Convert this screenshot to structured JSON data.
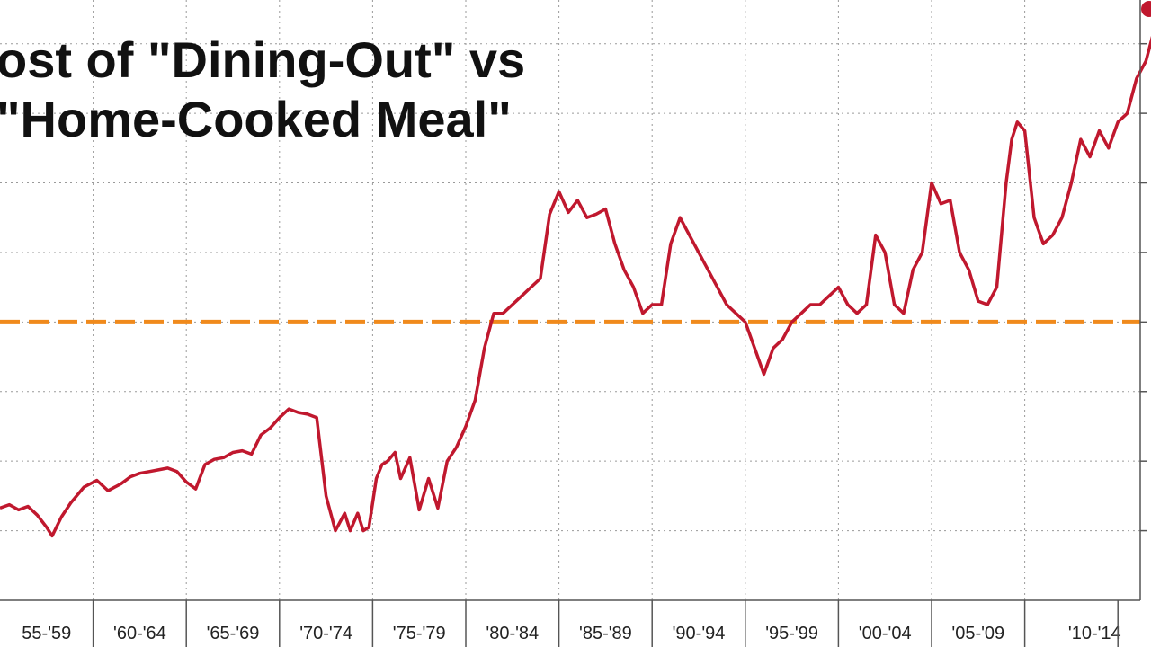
{
  "chart_data": {
    "type": "line",
    "title_lines": [
      "ost of \"Dining-Out\" vs",
      "\"Home-Cooked Meal\""
    ],
    "xlabel": "",
    "ylabel": "",
    "x_range": [
      1955,
      2017.5
    ],
    "y_range": [
      0.84,
      1.18
    ],
    "grid": true,
    "categories": [
      "55-'59",
      "'60-'64",
      "'65-'69",
      "'70-'74",
      "'75-'79",
      "'80-'84",
      "'85-'89",
      "'90-'94",
      "'95-'99",
      "'00-'04",
      "'05-'09",
      "'10-'14"
    ],
    "category_start_years": [
      1955,
      1960,
      1965,
      1970,
      1975,
      1980,
      1985,
      1990,
      1995,
      2000,
      2005,
      2010
    ],
    "reference_line": {
      "y": 1.0,
      "color": "#f08a1c",
      "style": "dashed"
    },
    "series": [
      {
        "color": "#c0182e",
        "x": [
          1955.0,
          1955.5,
          1956.0,
          1956.5,
          1957.0,
          1957.5,
          1957.8,
          1958.3,
          1958.8,
          1959.5,
          1960.2,
          1960.8,
          1961.5,
          1962.0,
          1962.5,
          1963.0,
          1963.5,
          1964.0,
          1964.5,
          1965.0,
          1965.5,
          1966.0,
          1966.5,
          1967.0,
          1967.5,
          1968.0,
          1968.5,
          1969.0,
          1969.5,
          1970.0,
          1970.5,
          1971.0,
          1971.5,
          1972.0,
          1972.5,
          1973.0,
          1973.5,
          1973.8,
          1974.2,
          1974.5,
          1974.8,
          1975.2,
          1975.5,
          1975.8,
          1976.2,
          1976.5,
          1977.0,
          1977.5,
          1978.0,
          1978.5,
          1979.0,
          1979.5,
          1980.0,
          1980.5,
          1981.0,
          1981.5,
          1982.0,
          1982.5,
          1983.0,
          1983.5,
          1984.0,
          1984.5,
          1985.0,
          1985.5,
          1986.0,
          1986.5,
          1987.0,
          1987.5,
          1988.0,
          1988.5,
          1989.0,
          1989.5,
          1990.0,
          1990.5,
          1991.0,
          1991.5,
          1992.0,
          1992.5,
          1993.0,
          1993.5,
          1994.0,
          1994.5,
          1995.0,
          1995.5,
          1996.0,
          1996.5,
          1997.0,
          1997.5,
          1998.0,
          1998.5,
          1999.0,
          1999.5,
          2000.0,
          2000.5,
          2001.0,
          2001.5,
          2002.0,
          2002.5,
          2003.0,
          2003.5,
          2004.0,
          2004.5,
          2005.0,
          2005.5,
          2006.0,
          2006.5,
          2007.0,
          2007.5,
          2008.0,
          2008.5,
          2009.0,
          2009.3,
          2009.6,
          2010.0,
          2010.5,
          2011.0,
          2011.5,
          2012.0,
          2012.5,
          2013.0,
          2013.5,
          2014.0,
          2014.5,
          2015.0,
          2015.5,
          2016.0,
          2016.5,
          2017.0
        ],
        "y": [
          0.893,
          0.895,
          0.892,
          0.894,
          0.889,
          0.882,
          0.877,
          0.888,
          0.896,
          0.905,
          0.909,
          0.903,
          0.907,
          0.911,
          0.913,
          0.914,
          0.915,
          0.916,
          0.914,
          0.908,
          0.904,
          0.918,
          0.921,
          0.922,
          0.925,
          0.926,
          0.924,
          0.935,
          0.939,
          0.945,
          0.95,
          0.948,
          0.947,
          0.945,
          0.9,
          0.88,
          0.89,
          0.88,
          0.89,
          0.88,
          0.882,
          0.91,
          0.918,
          0.92,
          0.925,
          0.91,
          0.922,
          0.892,
          0.91,
          0.893,
          0.92,
          0.928,
          0.94,
          0.955,
          0.985,
          1.005,
          1.005,
          1.01,
          1.015,
          1.02,
          1.025,
          1.062,
          1.075,
          1.063,
          1.07,
          1.06,
          1.062,
          1.065,
          1.045,
          1.03,
          1.02,
          1.005,
          1.01,
          1.01,
          1.045,
          1.06,
          1.05,
          1.04,
          1.03,
          1.02,
          1.01,
          1.005,
          1.0,
          0.985,
          0.97,
          0.985,
          0.99,
          1.0,
          1.005,
          1.01,
          1.01,
          1.015,
          1.02,
          1.01,
          1.005,
          1.01,
          1.05,
          1.04,
          1.01,
          1.005,
          1.03,
          1.04,
          1.08,
          1.068,
          1.07,
          1.04,
          1.03,
          1.012,
          1.01,
          1.02,
          1.08,
          1.105,
          1.115,
          1.11,
          1.06,
          1.045,
          1.05,
          1.06,
          1.08,
          1.105,
          1.095,
          1.11,
          1.1,
          1.115,
          1.12,
          1.14,
          1.15,
          1.17
        ],
        "end_marker": true
      }
    ]
  }
}
